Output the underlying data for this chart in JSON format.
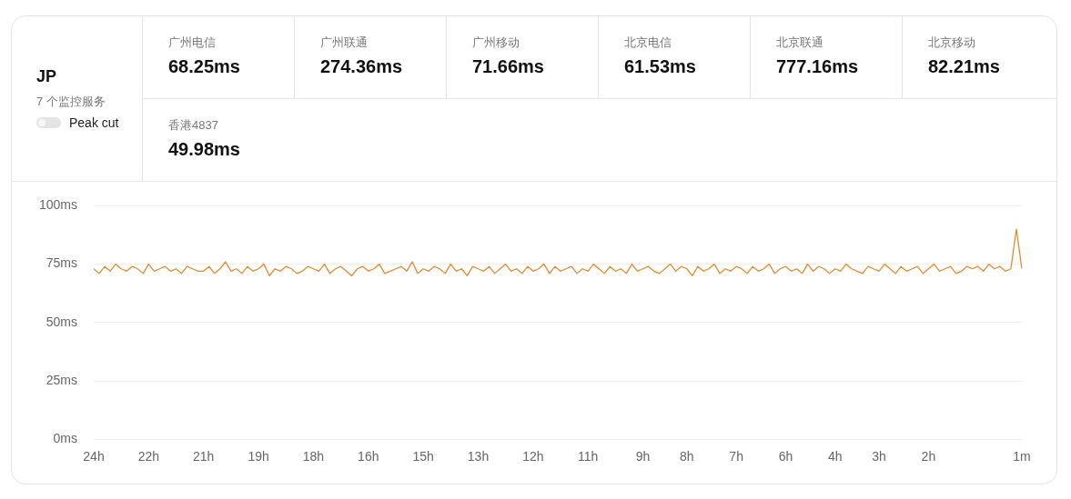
{
  "chart_data": [
    {
      "type": "other",
      "title": "JP",
      "subtitle": "7 个监控服务",
      "annotations": [
        "Peak cut"
      ],
      "categories": [
        "广州电信",
        "广州联通",
        "广州移动",
        "北京电信",
        "北京联通",
        "北京移动",
        "香港4837"
      ],
      "values": [
        68.25,
        274.36,
        71.66,
        61.53,
        777.16,
        82.21,
        49.98
      ],
      "value_labels": [
        "68.25ms",
        "274.36ms",
        "71.66ms",
        "61.53ms",
        "777.16ms",
        "82.21ms",
        "49.98ms"
      ]
    },
    {
      "type": "line",
      "legend": false,
      "grid": "y",
      "marker": "none",
      "line_style": "solid",
      "categories": [
        "24h",
        null,
        null,
        null,
        null,
        null,
        null,
        null,
        null,
        null,
        "22h",
        null,
        null,
        null,
        null,
        null,
        null,
        null,
        null,
        null,
        "21h",
        null,
        null,
        null,
        null,
        null,
        null,
        null,
        null,
        null,
        "19h",
        null,
        null,
        null,
        null,
        null,
        null,
        null,
        null,
        null,
        "18h",
        null,
        null,
        null,
        null,
        null,
        null,
        null,
        null,
        null,
        "16h",
        null,
        null,
        null,
        null,
        null,
        null,
        null,
        null,
        null,
        "15h",
        null,
        null,
        null,
        null,
        null,
        null,
        null,
        null,
        null,
        "13h",
        null,
        null,
        null,
        null,
        null,
        null,
        null,
        null,
        null,
        "12h",
        null,
        null,
        null,
        null,
        null,
        null,
        null,
        null,
        null,
        "11h",
        null,
        null,
        null,
        null,
        null,
        null,
        null,
        null,
        null,
        "9h",
        null,
        null,
        null,
        null,
        null,
        null,
        null,
        "8h",
        null,
        null,
        null,
        null,
        null,
        null,
        null,
        null,
        "7h",
        null,
        null,
        null,
        null,
        null,
        null,
        null,
        null,
        "6h",
        null,
        null,
        null,
        null,
        null,
        null,
        null,
        null,
        "4h",
        null,
        null,
        null,
        null,
        null,
        null,
        null,
        "3h",
        null,
        null,
        null,
        null,
        null,
        null,
        null,
        null,
        "2h",
        null,
        null,
        null,
        null,
        null,
        null,
        null,
        null,
        null,
        null,
        null,
        null,
        null,
        null,
        null,
        null,
        "1m"
      ],
      "ylim": [
        0,
        100
      ],
      "yticks": [
        {
          "value": 0,
          "label": "0ms"
        },
        {
          "value": 25,
          "label": "25ms"
        },
        {
          "value": 50,
          "label": "50ms"
        },
        {
          "value": 75,
          "label": "75ms"
        },
        {
          "value": 100,
          "label": "100ms"
        }
      ],
      "series": [
        {
          "color": "#e8892a",
          "values": [
            73,
            71,
            74,
            72,
            75,
            73,
            72,
            74,
            73,
            71,
            75,
            72,
            73,
            74,
            72,
            73,
            71,
            74,
            73,
            72,
            72,
            74,
            71,
            73,
            76,
            72,
            73,
            71,
            74,
            72,
            73,
            75,
            70,
            73,
            72,
            74,
            73,
            71,
            72,
            74,
            73,
            72,
            75,
            71,
            73,
            74,
            72,
            70,
            73,
            74,
            72,
            73,
            75,
            71,
            72,
            73,
            74,
            72,
            76,
            71,
            73,
            72,
            74,
            73,
            71,
            75,
            72,
            73,
            70,
            74,
            73,
            72,
            74,
            71,
            73,
            75,
            72,
            73,
            71,
            74,
            72,
            73,
            75,
            71,
            74,
            72,
            73,
            74,
            71,
            73,
            72,
            75,
            73,
            71,
            74,
            72,
            73,
            71,
            75,
            72,
            73,
            74,
            72,
            71,
            73,
            75,
            72,
            74,
            73,
            70,
            74,
            72,
            73,
            75,
            71,
            73,
            72,
            74,
            73,
            71,
            74,
            72,
            73,
            75,
            71,
            73,
            74,
            72,
            73,
            71,
            75,
            72,
            74,
            73,
            71,
            73,
            72,
            75,
            73,
            72,
            71,
            74,
            73,
            72,
            75,
            73,
            71,
            74,
            72,
            73,
            74,
            71,
            73,
            75,
            72,
            73,
            74,
            71,
            72,
            74,
            73,
            74,
            72,
            75,
            73,
            74,
            72,
            73,
            90,
            73
          ]
        }
      ]
    }
  ]
}
